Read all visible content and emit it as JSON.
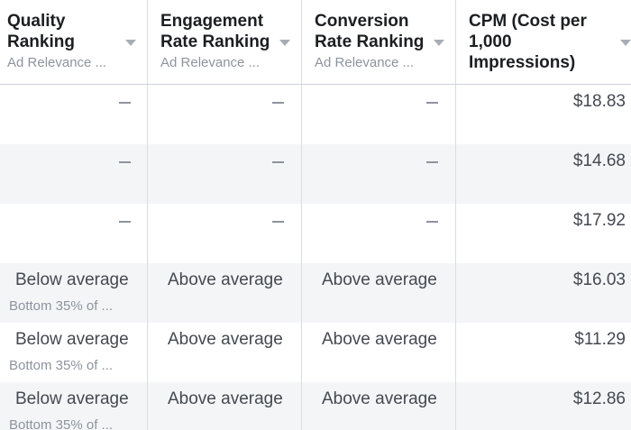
{
  "columns": [
    {
      "title": "Quality\nRanking",
      "subtitle": "Ad Relevance ..."
    },
    {
      "title": "Engagement\nRate Ranking",
      "subtitle": "Ad Relevance ..."
    },
    {
      "title": "Conversion\nRate Ranking",
      "subtitle": "Ad Relevance ..."
    },
    {
      "title": "CPM (Cost per\n1,000\nImpressions)"
    }
  ],
  "rows": [
    {
      "quality": "",
      "quality_sub": "",
      "engagement": "",
      "conversion": "",
      "cpm": "$18.83"
    },
    {
      "quality": "",
      "quality_sub": "",
      "engagement": "",
      "conversion": "",
      "cpm": "$14.68"
    },
    {
      "quality": "",
      "quality_sub": "",
      "engagement": "",
      "conversion": "",
      "cpm": "$17.92"
    },
    {
      "quality": "Below average",
      "quality_sub": "Bottom 35% of ...",
      "engagement": "Above average",
      "conversion": "Above average",
      "cpm": "$16.03"
    },
    {
      "quality": "Below average",
      "quality_sub": "Bottom 35% of ...",
      "engagement": "Above average",
      "conversion": "Above average",
      "cpm": "$11.29"
    },
    {
      "quality": "Below average",
      "quality_sub": "Bottom 35% of ...",
      "engagement": "Above average",
      "conversion": "Above average",
      "cpm": "$12.86"
    }
  ],
  "icons": {
    "sort": "caret-down-icon",
    "empty": "dash-icon"
  }
}
